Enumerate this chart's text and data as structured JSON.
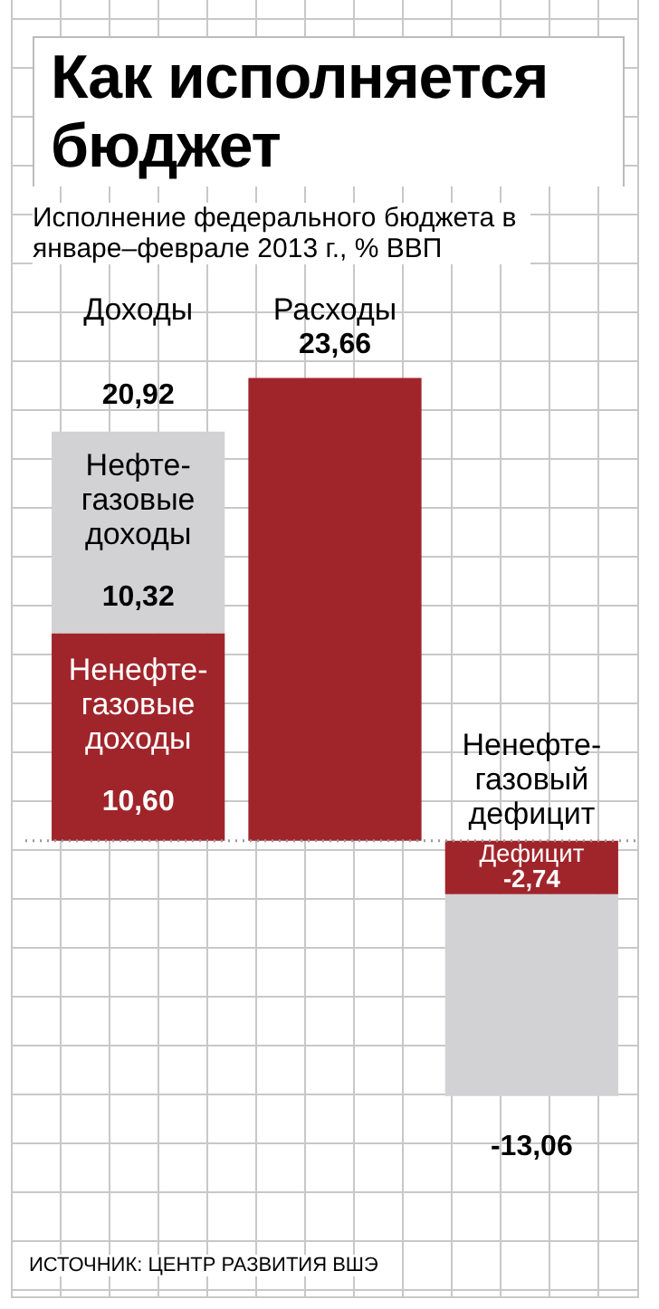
{
  "chart_data": {
    "type": "bar",
    "title": "Как исполняется бюджет",
    "subtitle": "Исполнение федерального бюджета в январе–феврале 2013 г., % ВВП",
    "categories": [
      "Доходы",
      "Расходы",
      "Ненефте-газовый дефицит"
    ],
    "stacked": true,
    "series": [
      {
        "color": "#a0252b",
        "values": [
          10.6,
          23.66,
          -2.74
        ],
        "value_labels": [
          "10,60",
          "23,66",
          "-2,74"
        ]
      },
      {
        "color": "#d2d2d4",
        "values": [
          10.32,
          null,
          -10.32
        ],
        "value_labels": [
          "10,32",
          null,
          null
        ]
      }
    ],
    "totals": [
      "20,92",
      null,
      "-13,06"
    ],
    "ref_lines": [
      {
        "axis": "y",
        "value": 0,
        "color": "#999999",
        "line_style": "dotted"
      }
    ],
    "annotations": [
      "Нефте-газовые доходы",
      "Ненефте-газовые доходы",
      "Дефицит",
      "ИСТОЧНИК: ЦЕНТР РАЗВИТИЯ ВШЭ"
    ],
    "grid": false,
    "legend": false
  }
}
